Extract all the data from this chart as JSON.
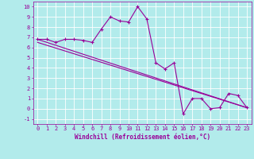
{
  "line1_x": [
    0,
    1,
    2,
    3,
    4,
    5,
    6,
    7,
    8,
    9,
    10,
    11,
    12,
    13,
    14,
    15,
    16,
    17,
    18,
    19,
    20,
    21,
    22,
    23
  ],
  "line1_y": [
    6.8,
    6.8,
    6.5,
    6.8,
    6.8,
    6.7,
    6.5,
    7.8,
    9.0,
    8.6,
    8.5,
    10.0,
    8.8,
    4.5,
    3.9,
    4.5,
    -0.5,
    1.0,
    1.0,
    0.0,
    0.1,
    1.5,
    1.3,
    0.1
  ],
  "line2_x": [
    0,
    23
  ],
  "line2_y": [
    6.8,
    0.1
  ],
  "line3_x": [
    0,
    23
  ],
  "line3_y": [
    6.5,
    0.1
  ],
  "line_color": "#990099",
  "bg_color": "#b2ebeb",
  "grid_color": "#ffffff",
  "xlabel": "Windchill (Refroidissement éolien,°C)",
  "xlim": [
    -0.5,
    23.5
  ],
  "ylim": [
    -1.5,
    10.5
  ],
  "xticks": [
    0,
    1,
    2,
    3,
    4,
    5,
    6,
    7,
    8,
    9,
    10,
    11,
    12,
    13,
    14,
    15,
    16,
    17,
    18,
    19,
    20,
    21,
    22,
    23
  ],
  "yticks": [
    -1,
    0,
    1,
    2,
    3,
    4,
    5,
    6,
    7,
    8,
    9,
    10
  ],
  "marker": "+",
  "markersize": 3.5,
  "linewidth": 0.8,
  "tick_fontsize": 5.0,
  "xlabel_fontsize": 5.5
}
